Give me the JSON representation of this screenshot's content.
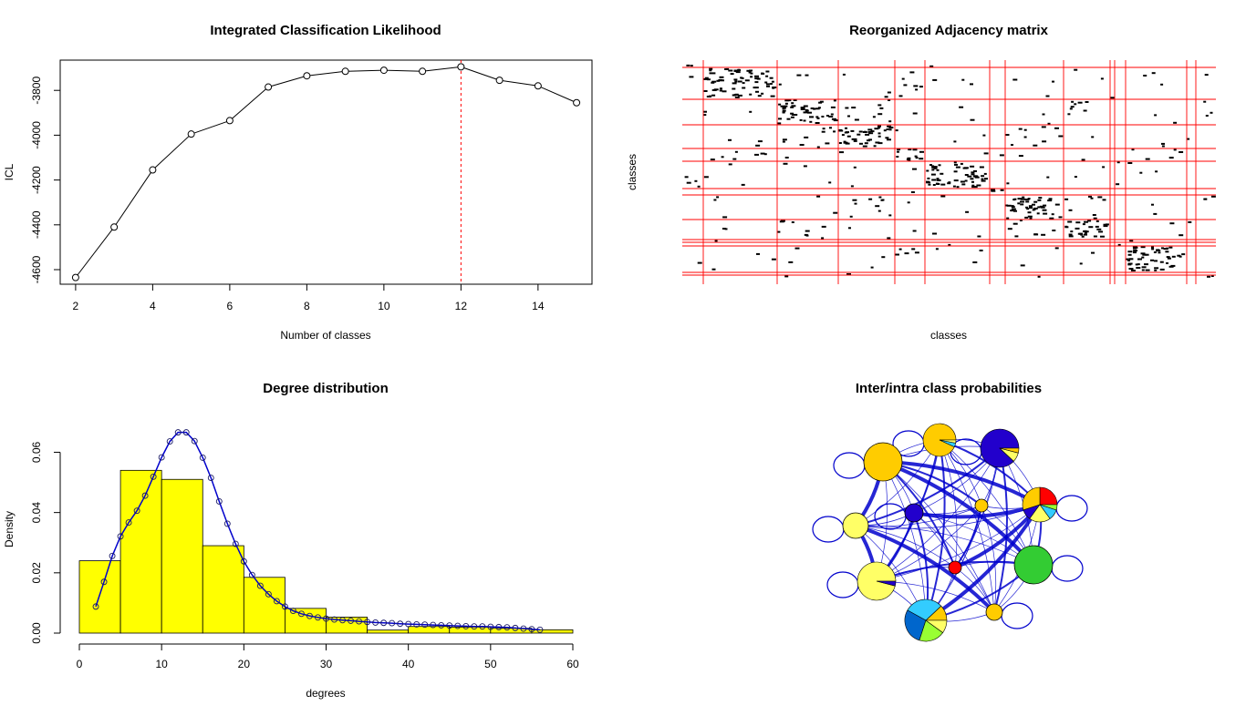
{
  "chart_data": [
    {
      "type": "line",
      "title": "Integrated Classification Likelihood",
      "xlabel": "Number of classes",
      "ylabel": "ICL",
      "x": [
        2,
        3,
        4,
        5,
        6,
        7,
        8,
        9,
        10,
        11,
        12,
        13,
        14,
        15
      ],
      "values": [
        -4635,
        -4410,
        -4155,
        -3995,
        -3935,
        -3785,
        -3735,
        -3715,
        -3710,
        -3715,
        -3695,
        -3755,
        -3780,
        -3855
      ],
      "xlim": [
        1.6,
        15.4
      ],
      "ylim": [
        -4665,
        -3665
      ],
      "xticks": [
        "2",
        "4",
        "6",
        "8",
        "10",
        "12",
        "14"
      ],
      "yticks": [
        "-4600",
        "-4400",
        "-4200",
        "-4000",
        "-3800"
      ],
      "marker": "open-circle",
      "highlight_x": 12,
      "highlight_color": "#ff0000",
      "grid": false
    },
    {
      "type": "heatmap",
      "title": "Reorganized Adjacency matrix",
      "xlabel": "classes",
      "ylabel": "classes",
      "separator_color": "#ff0000",
      "cell_color": "#000000",
      "grid": false
    },
    {
      "type": "bar",
      "title": "Degree distribution",
      "xlabel": "degrees",
      "ylabel": "Density",
      "bin_edges": [
        0,
        5,
        10,
        15,
        20,
        25,
        30,
        35,
        40,
        45,
        50,
        55,
        60
      ],
      "values": [
        0.024,
        0.054,
        0.051,
        0.029,
        0.0185,
        0.0082,
        0.0053,
        0.001,
        0.0022,
        0.002,
        0.0016,
        0.0011
      ],
      "bar_color": "#ffff00",
      "xlim": [
        0,
        60
      ],
      "ylim": [
        0,
        0.068
      ],
      "xticks": [
        "0",
        "10",
        "20",
        "30",
        "40",
        "50",
        "60"
      ],
      "yticks": [
        "0.00",
        "0.02",
        "0.04",
        "0.06"
      ],
      "series": [
        {
          "type": "line",
          "color": "#0000cc",
          "marker": "open-circle",
          "x": [
            2,
            3,
            4,
            5,
            6,
            7,
            8,
            9,
            10,
            11,
            12,
            13,
            14,
            15,
            16,
            17,
            18,
            19,
            20,
            21,
            22,
            23,
            24,
            25,
            26,
            27,
            28,
            29,
            30,
            31,
            32,
            33,
            34,
            35,
            36,
            37,
            38,
            39,
            40,
            41,
            42,
            43,
            44,
            45,
            46,
            47,
            48,
            49,
            50,
            51,
            52,
            53,
            54,
            55,
            56
          ],
          "y": [
            0.0088,
            0.017,
            0.0256,
            0.0321,
            0.0367,
            0.0406,
            0.0456,
            0.0519,
            0.0583,
            0.0636,
            0.0666,
            0.0666,
            0.0637,
            0.0582,
            0.0515,
            0.0437,
            0.0363,
            0.0296,
            0.0238,
            0.0193,
            0.0157,
            0.0129,
            0.0106,
            0.0088,
            0.0074,
            0.0064,
            0.0057,
            0.0052,
            0.0048,
            0.0045,
            0.0043,
            0.0041,
            0.0039,
            0.0037,
            0.0035,
            0.0034,
            0.0033,
            0.0031,
            0.003,
            0.0029,
            0.0028,
            0.0027,
            0.0026,
            0.0025,
            0.0024,
            0.0023,
            0.0022,
            0.0022,
            0.0021,
            0.002,
            0.0019,
            0.0017,
            0.0015,
            0.0013,
            0.0011
          ]
        }
      ],
      "grid": false
    },
    {
      "type": "network",
      "title": "Inter/intra class probabilities",
      "edge_color": "#0000cc",
      "node_palette": [
        "#ffcc00",
        "#2200cc",
        "#ff0000",
        "#33cc33",
        "#ffff66",
        "#33ccff",
        "#0066cc",
        "#99ff33"
      ],
      "grid": false
    }
  ]
}
